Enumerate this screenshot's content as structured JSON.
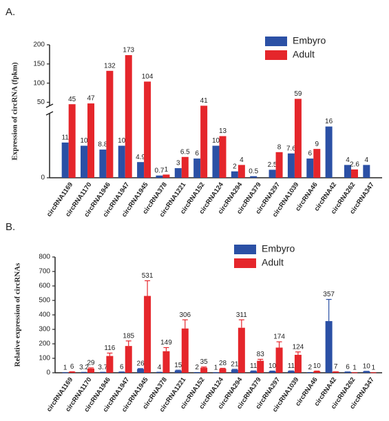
{
  "chart_data": [
    {
      "type": "bar",
      "label": "A.",
      "ylabel": "Expression of circRNA (fpkm)",
      "categories": [
        "circRNA1169",
        "circRNA1170",
        "circRNA1946",
        "circRNA1947",
        "circRNA1945",
        "circRNA378",
        "circRNA1221",
        "circRNA152",
        "circRNA124",
        "circRNA294",
        "circRNA379",
        "circRNA297",
        "circRNA1039",
        "circRNA46",
        "circRNA42",
        "circRNA262",
        "circRNA347"
      ],
      "series": [
        {
          "name": "Embyro",
          "color": "#2b50a5",
          "values": [
            11,
            10,
            8.8,
            10,
            4.9,
            0.7,
            3,
            6,
            10,
            2,
            0.5,
            2.5,
            7.6,
            6,
            16,
            4,
            4
          ]
        },
        {
          "name": "Adult",
          "color": "#e5262b",
          "values": [
            45,
            47,
            132,
            173,
            104,
            1,
            6.5,
            41,
            13,
            4,
            null,
            8,
            59,
            9,
            null,
            2.6,
            null
          ]
        }
      ],
      "ylim": [
        0,
        200
      ],
      "ybreak": [
        20,
        40
      ],
      "yticks": [
        0,
        50,
        100,
        150,
        200
      ],
      "legend": "top-right"
    },
    {
      "type": "bar",
      "label": "B.",
      "ylabel": "Relative expression of circRNAs",
      "categories": [
        "circRNA1169",
        "circRNA1170",
        "circRNA1946",
        "circRNA1947",
        "circRNA1945",
        "circRNA378",
        "circRNA1221",
        "circRNA152",
        "circRNA124",
        "circRNA294",
        "circRNA379",
        "circRNA297",
        "circRNA1039",
        "circRNA46",
        "circRNA42",
        "circRNA262",
        "circRNA347"
      ],
      "series": [
        {
          "name": "Embyro",
          "color": "#2b50a5",
          "values": [
            1,
            3.2,
            3.7,
            6,
            26,
            4,
            15,
            2,
            1,
            21,
            11,
            10,
            11,
            2,
            357,
            6,
            10
          ],
          "errors": [
            0,
            0,
            0,
            0,
            3,
            0,
            3,
            0,
            0,
            3,
            2,
            2,
            2,
            0,
            150,
            0,
            0
          ]
        },
        {
          "name": "Adult",
          "color": "#e5262b",
          "values": [
            6,
            29,
            116,
            185,
            531,
            149,
            306,
            35,
            28,
            311,
            83,
            174,
            124,
            10,
            7,
            1,
            1
          ],
          "errors": [
            1,
            5,
            20,
            35,
            105,
            25,
            60,
            5,
            3,
            55,
            10,
            40,
            20,
            2,
            0,
            0,
            0
          ]
        }
      ],
      "ylim": [
        0,
        800
      ],
      "yticks": [
        0,
        100,
        200,
        300,
        400,
        500,
        600,
        700,
        800
      ],
      "legend": "top-center"
    }
  ]
}
